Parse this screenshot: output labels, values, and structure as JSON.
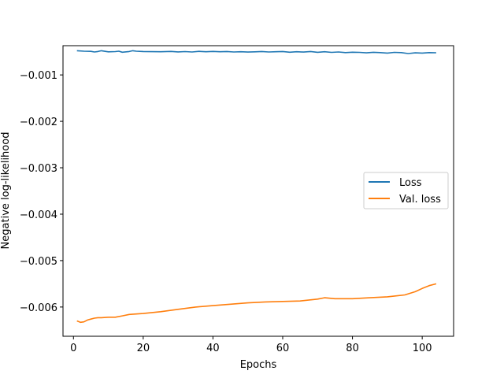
{
  "chart_data": {
    "type": "line",
    "title": "",
    "xlabel": "Epochs",
    "ylabel": "Negative log-likelihood",
    "xlim": [
      -3,
      109
    ],
    "ylim": [
      -0.00663,
      -0.00037
    ],
    "xticks": [
      0,
      20,
      40,
      60,
      80,
      100
    ],
    "yticks": [
      -0.006,
      -0.005,
      -0.004,
      -0.003,
      -0.002,
      -0.001
    ],
    "grid": false,
    "legend_position": "center-right",
    "series": [
      {
        "name": "Loss",
        "color": "#1f77b4",
        "x": [
          1,
          3,
          5,
          6,
          7,
          8,
          10,
          12,
          13,
          14,
          16,
          17,
          18,
          20,
          25,
          28,
          30,
          32,
          34,
          36,
          38,
          40,
          42,
          44,
          46,
          48,
          50,
          52,
          54,
          56,
          58,
          60,
          62,
          64,
          66,
          68,
          70,
          72,
          74,
          76,
          78,
          80,
          82,
          84,
          86,
          88,
          90,
          92,
          94,
          96,
          98,
          100,
          102,
          104
        ],
        "y": [
          -0.000478,
          -0.000488,
          -0.000492,
          -0.000505,
          -0.000495,
          -0.000478,
          -0.000502,
          -0.000498,
          -0.000488,
          -0.00051,
          -0.000495,
          -0.000478,
          -0.000488,
          -0.000496,
          -0.0005,
          -0.000494,
          -0.000504,
          -0.000498,
          -0.000506,
          -0.000492,
          -0.0005,
          -0.000494,
          -0.0005,
          -0.000496,
          -0.000505,
          -0.0005,
          -0.000508,
          -0.000502,
          -0.000496,
          -0.000505,
          -0.0005,
          -0.000496,
          -0.00051,
          -0.0005,
          -0.000508,
          -0.000496,
          -0.000512,
          -0.0005,
          -0.000515,
          -0.000505,
          -0.00052,
          -0.00051,
          -0.000515,
          -0.000525,
          -0.000512,
          -0.00052,
          -0.00053,
          -0.000515,
          -0.00052,
          -0.00054,
          -0.000525,
          -0.00053,
          -0.00052,
          -0.000522
        ]
      },
      {
        "name": "Val. loss",
        "color": "#ff7f0e",
        "x": [
          1,
          2,
          3,
          4,
          5,
          6,
          7,
          8,
          10,
          12,
          14,
          16,
          18,
          20,
          25,
          30,
          35,
          40,
          45,
          50,
          55,
          60,
          65,
          70,
          72,
          75,
          80,
          85,
          90,
          95,
          98,
          100,
          102,
          104
        ],
        "y": [
          -0.0063,
          -0.00633,
          -0.00632,
          -0.00628,
          -0.00626,
          -0.00624,
          -0.00623,
          -0.00623,
          -0.00622,
          -0.00622,
          -0.00619,
          -0.00616,
          -0.00615,
          -0.00614,
          -0.0061,
          -0.00605,
          -0.006,
          -0.00597,
          -0.00594,
          -0.00591,
          -0.00589,
          -0.00588,
          -0.00587,
          -0.00583,
          -0.0058,
          -0.00582,
          -0.00582,
          -0.0058,
          -0.00578,
          -0.00574,
          -0.00567,
          -0.0056,
          -0.00554,
          -0.0055
        ]
      }
    ]
  }
}
